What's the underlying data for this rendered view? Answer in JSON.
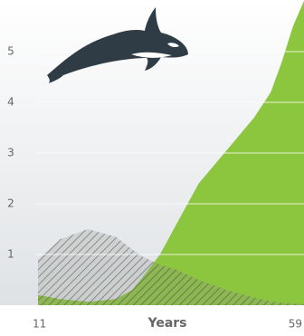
{
  "chart_data": {
    "type": "area",
    "x_label": "Years",
    "x": [
      11,
      15,
      20,
      25,
      28,
      30,
      33,
      36,
      40,
      45,
      50,
      53,
      55,
      57,
      59
    ],
    "series": [
      {
        "color": "#8cc63f",
        "style": "solid",
        "values": [
          0.2,
          0.12,
          0.07,
          0.12,
          0.3,
          0.57,
          1.0,
          1.6,
          2.4,
          3.05,
          3.7,
          4.2,
          4.8,
          5.5,
          6.0
        ]
      },
      {
        "color": "#5c6650",
        "style": "hatched",
        "values": [
          0.9,
          1.3,
          1.5,
          1.35,
          1.1,
          0.95,
          0.8,
          0.7,
          0.5,
          0.3,
          0.15,
          0.08,
          0.05,
          0.03,
          0.02
        ]
      }
    ],
    "xlim": [
      11,
      59
    ],
    "xticks": [
      11,
      59
    ],
    "ylim": [
      0,
      6
    ],
    "yticks": [
      1,
      2,
      3,
      4,
      5
    ],
    "grid": true
  }
}
